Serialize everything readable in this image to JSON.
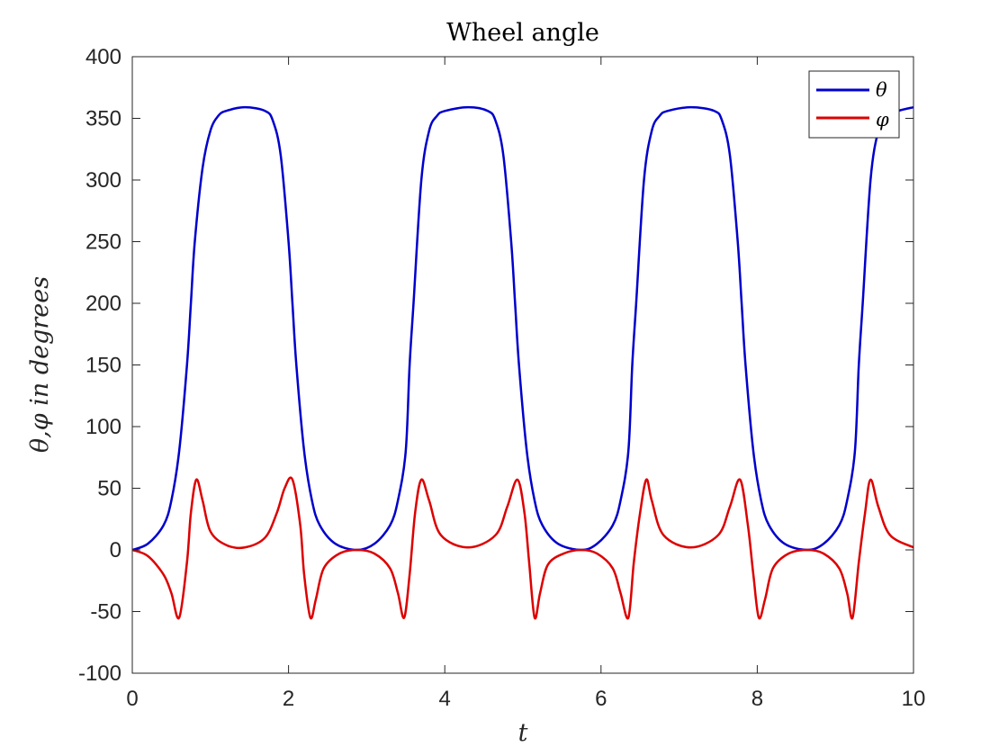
{
  "chart_data": {
    "type": "line",
    "title": "Wheel angle",
    "xlabel": "t",
    "ylabel": "θ,φ in degrees",
    "xlim": [
      0,
      10
    ],
    "ylim": [
      -100,
      400
    ],
    "xticks": [
      "0",
      "2",
      "4",
      "6",
      "8",
      "10"
    ],
    "yticks": [
      "-100",
      "-50",
      "0",
      "50",
      "100",
      "150",
      "200",
      "250",
      "300",
      "350",
      "400"
    ],
    "grid": false,
    "legend_position": "top-right",
    "series": [
      {
        "name": "θ",
        "color": "#0000cc",
        "x": [
          0,
          0.2,
          0.4,
          0.5,
          0.6,
          0.7,
          0.75,
          0.8,
          0.9,
          1.0,
          1.1,
          1.2,
          1.44,
          1.7,
          1.8,
          1.9,
          2.0,
          2.05,
          2.1,
          2.2,
          2.3,
          2.4,
          2.6,
          2.88,
          3.1,
          3.3,
          3.4,
          3.5,
          3.55,
          3.6,
          3.7,
          3.8,
          3.9,
          4.0,
          4.3,
          4.55,
          4.65,
          4.75,
          4.85,
          4.9,
          4.95,
          5.05,
          5.15,
          5.25,
          5.45,
          5.75,
          5.95,
          6.15,
          6.25,
          6.35,
          6.4,
          6.45,
          6.55,
          6.65,
          6.75,
          6.85,
          7.15,
          7.45,
          7.55,
          7.65,
          7.75,
          7.8,
          7.85,
          7.95,
          8.05,
          8.15,
          8.35,
          8.64,
          8.85,
          9.05,
          9.15,
          9.25,
          9.3,
          9.35,
          9.45,
          9.55,
          9.65,
          9.8,
          10
        ],
        "values": [
          0,
          5,
          20,
          40,
          80,
          150,
          200,
          250,
          310,
          340,
          352,
          356,
          359,
          356,
          348,
          320,
          250,
          200,
          150,
          80,
          40,
          20,
          5,
          0,
          5,
          20,
          40,
          80,
          150,
          200,
          300,
          340,
          352,
          356,
          359,
          356,
          348,
          320,
          250,
          200,
          150,
          80,
          40,
          20,
          5,
          0,
          5,
          20,
          40,
          80,
          150,
          200,
          300,
          340,
          352,
          356,
          359,
          356,
          348,
          320,
          250,
          200,
          150,
          80,
          40,
          20,
          5,
          0,
          5,
          20,
          40,
          80,
          150,
          200,
          300,
          340,
          352,
          356,
          359
        ]
      },
      {
        "name": "φ",
        "color": "#dd0000",
        "x": [
          0,
          0.2,
          0.4,
          0.5,
          0.6,
          0.7,
          0.75,
          0.82,
          0.9,
          1.0,
          1.2,
          1.44,
          1.7,
          1.85,
          1.95,
          2.05,
          2.15,
          2.2,
          2.28,
          2.35,
          2.45,
          2.65,
          2.88,
          3.1,
          3.3,
          3.4,
          3.48,
          3.55,
          3.62,
          3.7,
          3.8,
          3.95,
          4.3,
          4.65,
          4.8,
          4.93,
          5.02,
          5.08,
          5.15,
          5.22,
          5.32,
          5.52,
          5.75,
          5.95,
          6.15,
          6.25,
          6.35,
          6.42,
          6.5,
          6.58,
          6.65,
          6.8,
          7.15,
          7.5,
          7.65,
          7.78,
          7.88,
          7.95,
          8.02,
          8.1,
          8.2,
          8.4,
          8.64,
          8.85,
          9.05,
          9.15,
          9.22,
          9.3,
          9.38,
          9.45,
          9.55,
          9.7,
          10
        ],
        "values": [
          0,
          -5,
          -20,
          -35,
          -55,
          -10,
          30,
          57,
          40,
          15,
          4,
          2,
          10,
          30,
          50,
          57,
          20,
          -20,
          -55,
          -40,
          -15,
          -3,
          0,
          -3,
          -15,
          -35,
          -55,
          -20,
          30,
          57,
          40,
          12,
          2,
          12,
          35,
          57,
          30,
          -10,
          -55,
          -35,
          -12,
          -3,
          0,
          -3,
          -15,
          -35,
          -55,
          -10,
          30,
          57,
          40,
          12,
          2,
          12,
          35,
          57,
          20,
          -20,
          -55,
          -40,
          -15,
          -3,
          0,
          -3,
          -15,
          -35,
          -55,
          -10,
          30,
          57,
          35,
          12,
          2
        ]
      }
    ]
  }
}
